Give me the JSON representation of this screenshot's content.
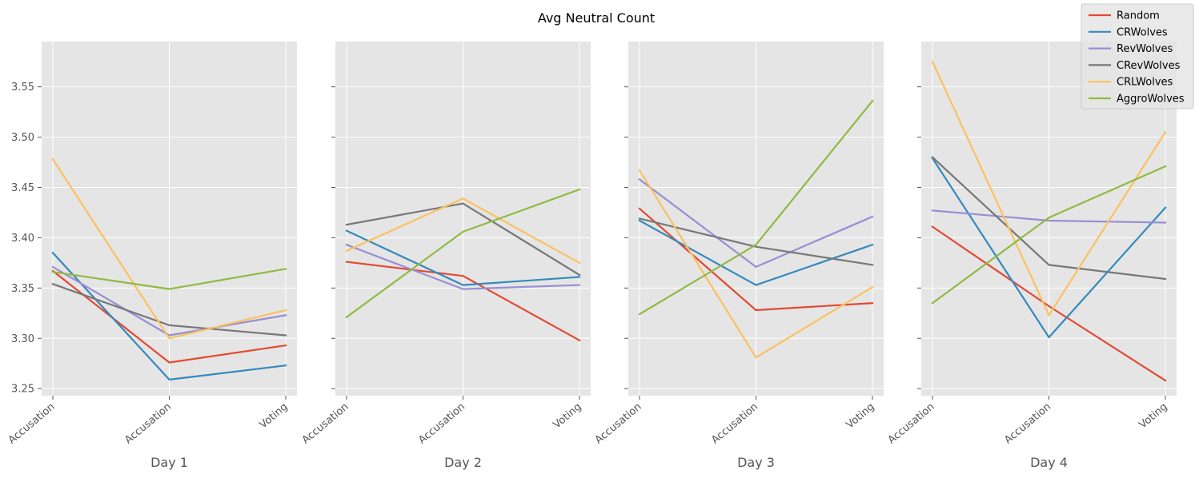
{
  "title": "Avg Neutral Count",
  "chart_data": {
    "type": "line",
    "title": "Avg Neutral Count",
    "ylim": [
      3.243,
      3.595
    ],
    "yticks": [
      "3.25",
      "3.30",
      "3.35",
      "3.40",
      "3.45",
      "3.50",
      "3.55"
    ],
    "grid": true,
    "legend_position": "top-right",
    "series_meta": [
      {
        "name": "Random",
        "color": "#E24A33"
      },
      {
        "name": "CRWolves",
        "color": "#348ABD"
      },
      {
        "name": "RevWolves",
        "color": "#988ED5"
      },
      {
        "name": "CRevWolves",
        "color": "#777777"
      },
      {
        "name": "CRLWolves",
        "color": "#FBC15E"
      },
      {
        "name": "AggroWolves",
        "color": "#8EBA42"
      }
    ],
    "subplots": [
      {
        "xlabel": "Day 1",
        "categories": [
          "Accusation",
          "Accusation",
          "Voting"
        ],
        "series": [
          {
            "name": "Random",
            "values": [
              3.367,
              3.276,
              3.293
            ]
          },
          {
            "name": "CRWolves",
            "values": [
              3.385,
              3.259,
              3.273
            ]
          },
          {
            "name": "RevWolves",
            "values": [
              3.371,
              3.303,
              3.323
            ]
          },
          {
            "name": "CRevWolves",
            "values": [
              3.354,
              3.313,
              3.303
            ]
          },
          {
            "name": "CRLWolves",
            "values": [
              3.478,
              3.3,
              3.328
            ]
          },
          {
            "name": "AggroWolves",
            "values": [
              3.366,
              3.349,
              3.369
            ]
          }
        ]
      },
      {
        "xlabel": "Day 2",
        "categories": [
          "Accusation",
          "Accusation",
          "Voting"
        ],
        "series": [
          {
            "name": "Random",
            "values": [
              3.376,
              3.362,
              3.298
            ]
          },
          {
            "name": "CRWolves",
            "values": [
              3.407,
              3.353,
              3.361
            ]
          },
          {
            "name": "RevWolves",
            "values": [
              3.393,
              3.349,
              3.353
            ]
          },
          {
            "name": "CRevWolves",
            "values": [
              3.413,
              3.434,
              3.363
            ]
          },
          {
            "name": "CRLWolves",
            "values": [
              3.387,
              3.439,
              3.375
            ]
          },
          {
            "name": "AggroWolves",
            "values": [
              3.321,
              3.406,
              3.448
            ]
          }
        ]
      },
      {
        "xlabel": "Day 3",
        "categories": [
          "Accusation",
          "Accusation",
          "Voting"
        ],
        "series": [
          {
            "name": "Random",
            "values": [
              3.429,
              3.328,
              3.335
            ]
          },
          {
            "name": "CRWolves",
            "values": [
              3.417,
              3.353,
              3.393
            ]
          },
          {
            "name": "RevWolves",
            "values": [
              3.458,
              3.371,
              3.421
            ]
          },
          {
            "name": "CRevWolves",
            "values": [
              3.419,
              3.391,
              3.373
            ]
          },
          {
            "name": "CRLWolves",
            "values": [
              3.467,
              3.281,
              3.351
            ]
          },
          {
            "name": "AggroWolves",
            "values": [
              3.324,
              3.393,
              3.536
            ]
          }
        ]
      },
      {
        "xlabel": "Day 4",
        "categories": [
          "Accusation",
          "Accusation",
          "Voting"
        ],
        "series": [
          {
            "name": "Random",
            "values": [
              3.411,
              3.332,
              3.258
            ]
          },
          {
            "name": "CRWolves",
            "values": [
              3.479,
              3.301,
              3.43
            ]
          },
          {
            "name": "RevWolves",
            "values": [
              3.427,
              3.417,
              3.415
            ]
          },
          {
            "name": "CRevWolves",
            "values": [
              3.48,
              3.373,
              3.359
            ]
          },
          {
            "name": "CRLWolves",
            "values": [
              3.575,
              3.323,
              3.505
            ]
          },
          {
            "name": "AggroWolves",
            "values": [
              3.335,
              3.42,
              3.471
            ]
          }
        ]
      }
    ]
  }
}
